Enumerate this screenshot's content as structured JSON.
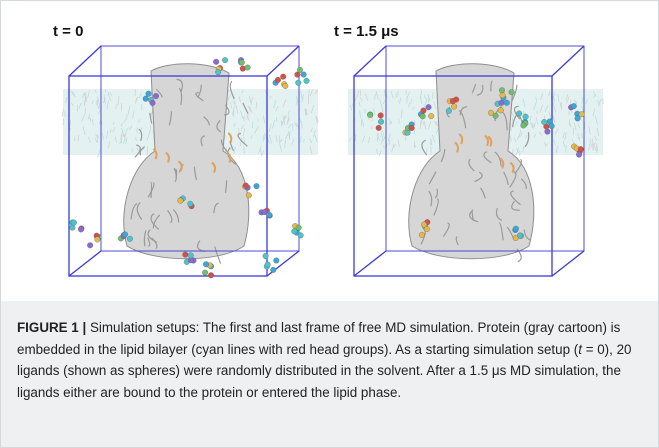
{
  "figure": {
    "panels": [
      {
        "label": "t = 0"
      },
      {
        "label": "t = 1.5 μs"
      }
    ],
    "caption": {
      "label": "FIGURE 1 |",
      "parts": [
        "Simulation setups: The first and last frame of free MD simulation. Protein (gray cartoon) is embedded in the lipid bilayer (cyan lines with red head groups). As a starting simulation setup (",
        "t",
        " = 0), 20 ligands (shown as spheres) were randomly distributed in the solvent. After a 1.5 μs MD simulation, the ligands either are bound to the protein or entered the lipid phase."
      ]
    }
  }
}
